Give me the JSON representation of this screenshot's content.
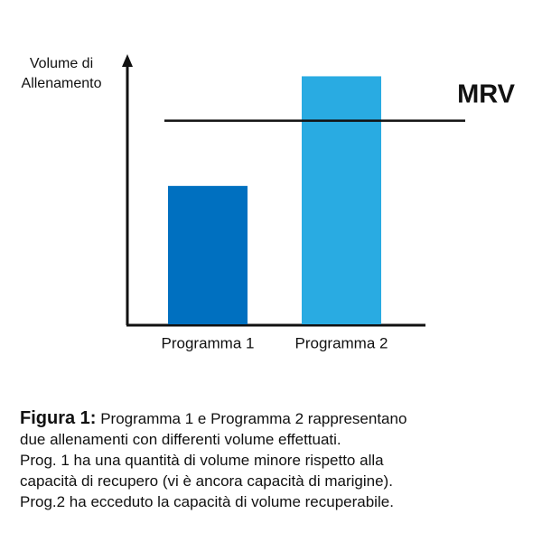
{
  "chart_data": {
    "type": "bar",
    "y_label": "Volume di Allenamento",
    "categories": [
      "Programma 1",
      "Programma 2"
    ],
    "values": [
      53,
      95
    ],
    "colors": [
      "#0070c0",
      "#29abe2"
    ],
    "ylim": [
      0,
      100
    ],
    "reference_line": {
      "label": "MRV",
      "value": 78,
      "color": "#111111"
    }
  },
  "caption": {
    "label": "Figura 1:",
    "lines": [
      "Programma 1 e Programma 2 rappresentano",
      "due allenamenti con differenti volume effettuati.",
      "Prog. 1 ha una quantità di volume minore rispetto alla",
      "capacità di recupero (vi è ancora capacità di marigine).",
      "Prog.2 ha ecceduto la capacità di volume recuperabile."
    ]
  }
}
